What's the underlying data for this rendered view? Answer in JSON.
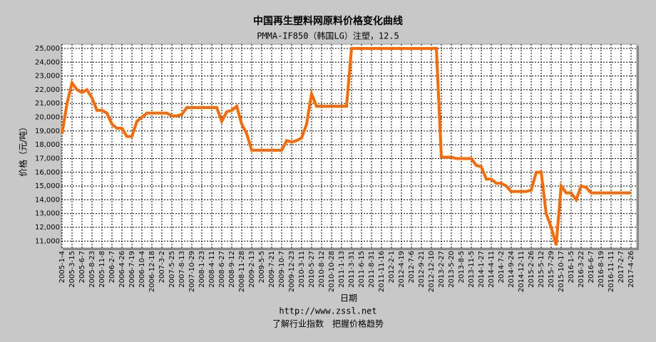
{
  "chart_data": {
    "type": "line",
    "title": "中国再生塑料网原料价格变化曲线",
    "subtitle": "PMMA-IF850（韩国LG）注塑，12.5",
    "y_label": "价格（元/吨）",
    "x_label": "日期",
    "footer_url": "http://www.zssl.net",
    "footer_slogan": "了解行业指数　把握价格趋势",
    "categories": [
      "2005-1-4",
      null,
      "2005-3-15",
      null,
      "2005-6-7",
      null,
      "2005-8-23",
      null,
      "2005-11-8",
      null,
      "2006-2-7",
      null,
      "2006-4-26",
      null,
      "2006-7-19",
      null,
      "2006-10-4",
      null,
      "2006-12-18",
      null,
      "2007-3-2",
      null,
      "2007-5-25",
      null,
      "2007-8-13",
      null,
      "2007-10-29",
      null,
      "2008-1-23",
      null,
      "2008-4-11",
      null,
      "2008-6-27",
      null,
      "2008-9-12",
      null,
      "2008-11-28",
      null,
      "2009-2-13",
      null,
      "2009-5-5",
      null,
      "2009-7-21",
      null,
      "2009-10-7",
      null,
      "2009-12-23",
      null,
      "2010-3-11",
      null,
      "2010-5-27",
      null,
      "2010-8-12",
      null,
      "2010-10-28",
      null,
      "2011-1-13",
      null,
      "2011-3-31",
      null,
      "2011-6-15",
      null,
      "2011-8-31",
      null,
      "2011-11-16",
      null,
      "2012-2-1",
      null,
      "2012-4-19",
      null,
      "2012-7-6",
      null,
      "2012-9-21",
      null,
      "2012-12-10",
      null,
      "2013-2-27",
      null,
      "2013-5-20",
      null,
      "2013-8-5",
      null,
      "2013-11-5",
      null,
      "2014-1-27",
      null,
      "2014-4-11",
      null,
      "2014-7-2",
      null,
      "2014-9-24",
      null,
      "2014-12-11",
      null,
      "2015-2-26",
      null,
      "2015-5-12",
      null,
      "2015-7-29",
      null,
      "2015-10-17",
      null,
      "2016-1-5",
      null,
      "2016-3-22",
      null,
      "2016-6-7",
      null,
      "2016-8-19",
      null,
      "2016-11-11",
      null,
      "2017-2-7",
      null,
      "2017-4-26"
    ],
    "values": [
      18800,
      21000,
      22500,
      22000,
      21800,
      22000,
      21400,
      20500,
      20500,
      20300,
      19500,
      19200,
      19200,
      18600,
      18600,
      19700,
      20000,
      20300,
      20300,
      20300,
      20300,
      20300,
      20100,
      20100,
      20200,
      20700,
      20700,
      20700,
      20700,
      20700,
      20700,
      20700,
      19700,
      20400,
      20500,
      20800,
      19500,
      18800,
      17600,
      17600,
      17600,
      17600,
      17600,
      17600,
      17600,
      18300,
      18200,
      18300,
      18500,
      19500,
      21700,
      20800,
      20800,
      20800,
      20800,
      20800,
      20800,
      20800,
      25000,
      25000,
      25000,
      25000,
      25000,
      25000,
      25000,
      25000,
      25000,
      25000,
      25000,
      25000,
      25000,
      25000,
      25000,
      25000,
      25000,
      25000,
      17100,
      17100,
      17100,
      17000,
      17000,
      17000,
      17000,
      16500,
      16400,
      15500,
      15500,
      15200,
      15200,
      15000,
      14600,
      14600,
      14600,
      14600,
      14700,
      16000,
      16000,
      13000,
      12000,
      10700,
      15000,
      14500,
      14500,
      14000,
      15000,
      14900,
      14500,
      14500,
      14500,
      14500,
      14500,
      14500,
      14500,
      14500,
      14500
    ],
    "color": "#ff6a00",
    "ylim": [
      10500,
      25000
    ],
    "yticks": [
      {
        "value": 11000,
        "label": "11,000"
      },
      {
        "value": 12000,
        "label": "12,000"
      },
      {
        "value": 13000,
        "label": "13,000"
      },
      {
        "value": 14000,
        "label": "14,000"
      },
      {
        "value": 15000,
        "label": "15,000"
      },
      {
        "value": 16000,
        "label": "16,000"
      },
      {
        "value": 17000,
        "label": "17,000"
      },
      {
        "value": 18000,
        "label": "18,000"
      },
      {
        "value": 19000,
        "label": "19,000"
      },
      {
        "value": 20000,
        "label": "20,000"
      },
      {
        "value": 21000,
        "label": "21,000"
      },
      {
        "value": 22000,
        "label": "22,000"
      },
      {
        "value": 23000,
        "label": "23,000"
      },
      {
        "value": 24000,
        "label": "24,000"
      },
      {
        "value": 25000,
        "label": "25,000"
      }
    ],
    "grid": true
  }
}
